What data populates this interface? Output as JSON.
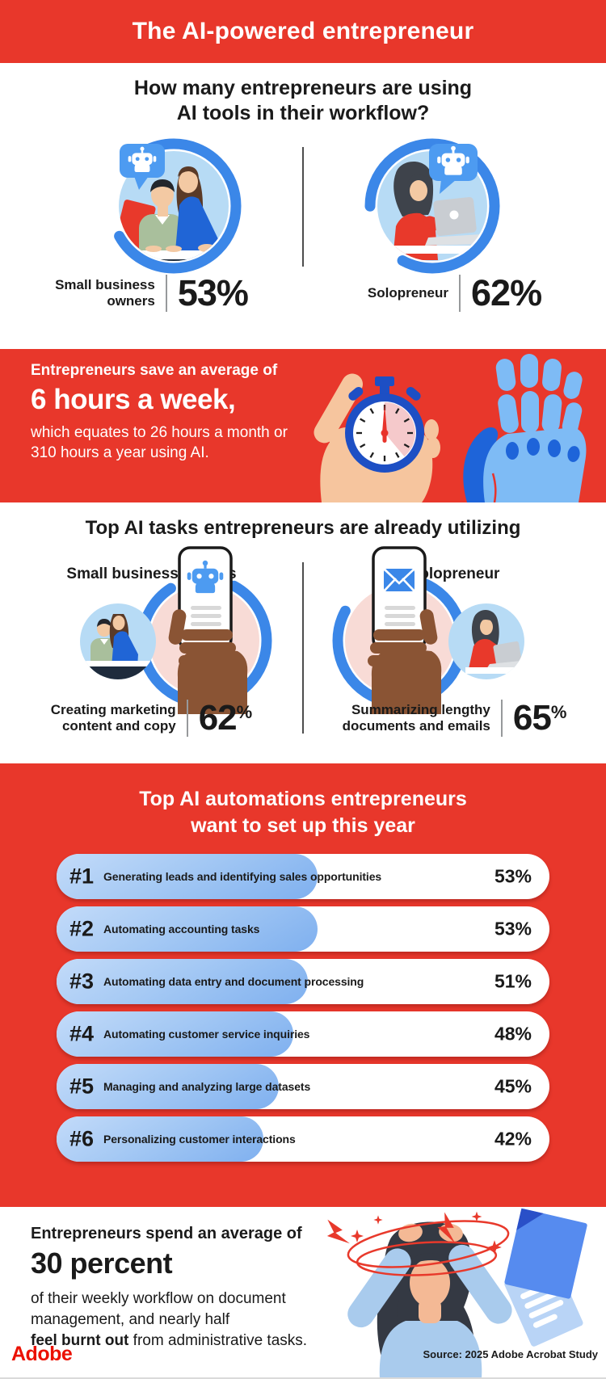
{
  "header": {
    "title": "The AI-powered entrepreneur"
  },
  "usage_section": {
    "heading_line1": "How many entrepreneurs are using",
    "heading_line2": "AI tools in their workflow?",
    "small_business": {
      "label_line1": "Small business",
      "label_line2": "owners",
      "value": "53%"
    },
    "solopreneur": {
      "label": "Solopreneur",
      "value": "62%"
    }
  },
  "time_saved_section": {
    "intro": "Entrepreneurs save an average of",
    "headline": "6 hours a week,",
    "detail_line1": "which equates to 26 hours a month or",
    "detail_line2": "310 hours a year using AI."
  },
  "tasks_section": {
    "heading": "Top AI tasks entrepreneurs are already utilizing",
    "small_business": {
      "group": "Small business owners",
      "task_line1": "Creating marketing",
      "task_line2": "content and copy",
      "value": "62",
      "unit": "%"
    },
    "solopreneur": {
      "group": "Solopreneur",
      "task_line1": "Summarizing lengthy",
      "task_line2": "documents and emails",
      "value": "65",
      "unit": "%"
    }
  },
  "automations_section": {
    "heading_line1": "Top AI automations entrepreneurs",
    "heading_line2": "want to set up this year",
    "items": [
      {
        "rank": "#1",
        "label": "Generating leads and identifying sales opportunities",
        "value": "53%",
        "pct": 53
      },
      {
        "rank": "#2",
        "label": "Automating accounting tasks",
        "value": "53%",
        "pct": 53
      },
      {
        "rank": "#3",
        "label": "Automating data entry and document processing",
        "value": "51%",
        "pct": 51
      },
      {
        "rank": "#4",
        "label": "Automating customer service inquiries",
        "value": "48%",
        "pct": 48
      },
      {
        "rank": "#5",
        "label": "Managing and analyzing large datasets",
        "value": "45%",
        "pct": 45
      },
      {
        "rank": "#6",
        "label": "Personalizing customer interactions",
        "value": "42%",
        "pct": 42
      }
    ]
  },
  "burnout_section": {
    "intro": "Entrepreneurs spend an average of",
    "headline": "30 percent",
    "detail_line1": "of their weekly workflow on document",
    "detail_line2": "management, and nearly half",
    "detail_bold": "feel burnt out",
    "detail_rest": " from administrative tasks."
  },
  "footer": {
    "brand": "Adobe",
    "source": "Source: 2025 Adobe Acrobat Study"
  },
  "colors": {
    "brand_red": "#E8372B",
    "adobe_logo_red": "#EB1000",
    "arc_blue": "#3B87E8",
    "bubble_blue": "#4D9BF1",
    "light_blue_bg": "#B7DBF5",
    "pink_bg": "#F8DBD6",
    "bar_fill_light": "#C3DBF9",
    "bar_fill_dark": "#7FB0EF",
    "text_dark": "#1A1A1A"
  },
  "facts": {
    "hours_saved_per_week": 6,
    "hours_saved_per_month": 26,
    "hours_saved_per_year": 310,
    "weekly_workflow_document_management_pct": 30,
    "nearly_half_feel_burnt_out": true
  },
  "chart_data": [
    {
      "type": "pie",
      "title": "How many entrepreneurs are using AI tools in their workflow?",
      "categories": [
        "Small business owners",
        "Solopreneur"
      ],
      "values": [
        53,
        62
      ],
      "unit": "%",
      "note": "shown as two partial ring charts with illustrations"
    },
    {
      "type": "bar",
      "title": "Top AI tasks entrepreneurs are already utilizing",
      "categories": [
        "Creating marketing content and copy (Small business owners)",
        "Summarizing lengthy documents and emails (Solopreneur)"
      ],
      "values": [
        62,
        65
      ],
      "unit": "%"
    },
    {
      "type": "bar",
      "title": "Top AI automations entrepreneurs want to set up this year",
      "categories": [
        "Generating leads and identifying sales opportunities",
        "Automating accounting tasks",
        "Automating data entry and document processing",
        "Automating customer service inquiries",
        "Managing and analyzing large datasets",
        "Personalizing customer interactions"
      ],
      "values": [
        53,
        53,
        51,
        48,
        45,
        42
      ],
      "unit": "%",
      "xlim": [
        0,
        100
      ],
      "legend_position": "none",
      "grid": false
    }
  ]
}
